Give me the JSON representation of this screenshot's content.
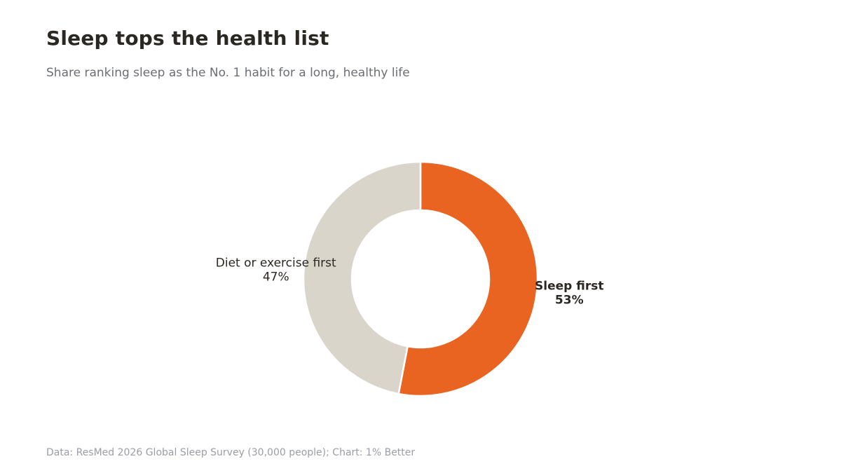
{
  "header": {
    "title": "Sleep tops the health list",
    "subtitle": "Share ranking sleep as the No. 1 habit for a long, healthy life"
  },
  "chart_data": {
    "type": "pie",
    "variant": "donut",
    "slices": [
      {
        "name": "Sleep first",
        "value": 53,
        "value_label": "53%",
        "color": "#ea6421",
        "emphasis": true
      },
      {
        "name": "Diet or exercise first",
        "value": 47,
        "value_label": "47%",
        "color": "#dad5ca",
        "emphasis": false
      }
    ],
    "start": "12 o'clock",
    "direction": "clockwise"
  },
  "footer": {
    "source": "Data: ResMed 2026 Global Sleep Survey (30,000 people); Chart: 1% Better"
  }
}
